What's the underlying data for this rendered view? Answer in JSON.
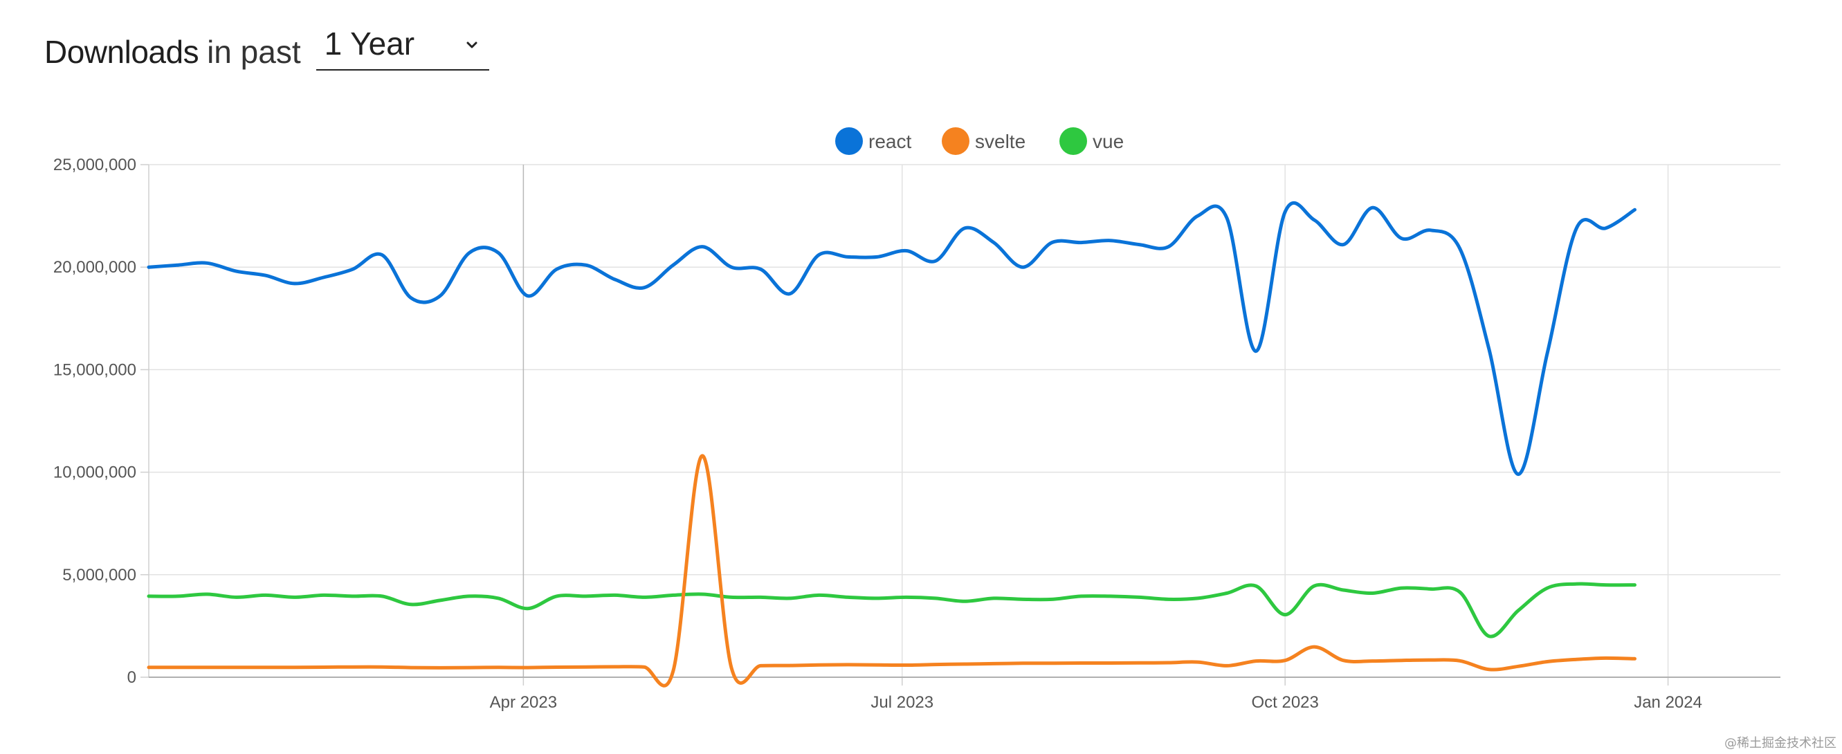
{
  "header": {
    "title_bold": "Downloads",
    "title_light": "in past",
    "range_select": {
      "value": "1 Year"
    }
  },
  "chart_data": {
    "type": "line",
    "title": "",
    "xlabel": "",
    "ylabel": "",
    "x_range": [
      "2023-01-01",
      "2024-01-28"
    ],
    "ylim": [
      0,
      25000000
    ],
    "y_ticks": [
      0,
      5000000,
      10000000,
      15000000,
      20000000,
      25000000
    ],
    "y_tick_labels": [
      "0",
      "5,000,000",
      "10,000,000",
      "15,000,000",
      "20,000,000",
      "25,000,000"
    ],
    "x_ticks": [
      "2023-04-01",
      "2023-07-01",
      "2023-10-01",
      "2024-01-01"
    ],
    "x_tick_labels": [
      "Apr 2023",
      "Jul 2023",
      "Oct 2023",
      "Jan 2024"
    ],
    "grid": true,
    "legend_position": "top-center",
    "series": [
      {
        "name": "react",
        "color": "#0a73d8",
        "points": [
          [
            "2023-01-01",
            20000000
          ],
          [
            "2023-01-08",
            20100000
          ],
          [
            "2023-01-15",
            20200000
          ],
          [
            "2023-01-22",
            19800000
          ],
          [
            "2023-01-29",
            19600000
          ],
          [
            "2023-02-05",
            19200000
          ],
          [
            "2023-02-12",
            19500000
          ],
          [
            "2023-02-19",
            19900000
          ],
          [
            "2023-02-26",
            20600000
          ],
          [
            "2023-03-05",
            18500000
          ],
          [
            "2023-03-12",
            18600000
          ],
          [
            "2023-03-19",
            20700000
          ],
          [
            "2023-03-26",
            20700000
          ],
          [
            "2023-04-02",
            18600000
          ],
          [
            "2023-04-09",
            19900000
          ],
          [
            "2023-04-16",
            20100000
          ],
          [
            "2023-04-23",
            19400000
          ],
          [
            "2023-04-30",
            19000000
          ],
          [
            "2023-05-07",
            20100000
          ],
          [
            "2023-05-14",
            21000000
          ],
          [
            "2023-05-21",
            20000000
          ],
          [
            "2023-05-28",
            19900000
          ],
          [
            "2023-06-04",
            18700000
          ],
          [
            "2023-06-11",
            20600000
          ],
          [
            "2023-06-18",
            20500000
          ],
          [
            "2023-06-25",
            20500000
          ],
          [
            "2023-07-02",
            20800000
          ],
          [
            "2023-07-09",
            20300000
          ],
          [
            "2023-07-16",
            21900000
          ],
          [
            "2023-07-23",
            21200000
          ],
          [
            "2023-07-30",
            20000000
          ],
          [
            "2023-08-06",
            21200000
          ],
          [
            "2023-08-13",
            21200000
          ],
          [
            "2023-08-20",
            21300000
          ],
          [
            "2023-08-27",
            21100000
          ],
          [
            "2023-09-03",
            21000000
          ],
          [
            "2023-09-10",
            22500000
          ],
          [
            "2023-09-17",
            22400000
          ],
          [
            "2023-09-24",
            15900000
          ],
          [
            "2023-10-01",
            22700000
          ],
          [
            "2023-10-08",
            22300000
          ],
          [
            "2023-10-15",
            21100000
          ],
          [
            "2023-10-22",
            22900000
          ],
          [
            "2023-10-29",
            21400000
          ],
          [
            "2023-11-05",
            21800000
          ],
          [
            "2023-11-12",
            20900000
          ],
          [
            "2023-11-19",
            16000000
          ],
          [
            "2023-11-26",
            9900000
          ],
          [
            "2023-12-03",
            15800000
          ],
          [
            "2023-12-10",
            21900000
          ],
          [
            "2023-12-17",
            21900000
          ],
          [
            "2023-12-24",
            22800000
          ]
        ]
      },
      {
        "name": "svelte",
        "color": "#f5821f",
        "points": [
          [
            "2023-01-01",
            480000
          ],
          [
            "2023-01-08",
            480000
          ],
          [
            "2023-01-15",
            480000
          ],
          [
            "2023-01-22",
            480000
          ],
          [
            "2023-01-29",
            480000
          ],
          [
            "2023-02-05",
            480000
          ],
          [
            "2023-02-12",
            490000
          ],
          [
            "2023-02-19",
            500000
          ],
          [
            "2023-02-26",
            500000
          ],
          [
            "2023-03-05",
            470000
          ],
          [
            "2023-03-12",
            460000
          ],
          [
            "2023-03-19",
            470000
          ],
          [
            "2023-03-26",
            480000
          ],
          [
            "2023-04-02",
            470000
          ],
          [
            "2023-04-09",
            490000
          ],
          [
            "2023-04-16",
            500000
          ],
          [
            "2023-04-23",
            510000
          ],
          [
            "2023-04-30",
            500000
          ],
          [
            "2023-05-07",
            310000
          ],
          [
            "2023-05-14",
            10800000
          ],
          [
            "2023-05-21",
            450000
          ],
          [
            "2023-05-28",
            560000
          ],
          [
            "2023-06-04",
            570000
          ],
          [
            "2023-06-11",
            600000
          ],
          [
            "2023-06-18",
            610000
          ],
          [
            "2023-06-25",
            600000
          ],
          [
            "2023-07-02",
            590000
          ],
          [
            "2023-07-09",
            620000
          ],
          [
            "2023-07-16",
            640000
          ],
          [
            "2023-07-23",
            660000
          ],
          [
            "2023-07-30",
            680000
          ],
          [
            "2023-08-06",
            680000
          ],
          [
            "2023-08-13",
            690000
          ],
          [
            "2023-08-20",
            690000
          ],
          [
            "2023-08-27",
            700000
          ],
          [
            "2023-09-03",
            710000
          ],
          [
            "2023-09-10",
            740000
          ],
          [
            "2023-09-17",
            560000
          ],
          [
            "2023-09-24",
            790000
          ],
          [
            "2023-10-01",
            820000
          ],
          [
            "2023-10-08",
            1480000
          ],
          [
            "2023-10-15",
            820000
          ],
          [
            "2023-10-22",
            790000
          ],
          [
            "2023-10-29",
            820000
          ],
          [
            "2023-11-05",
            840000
          ],
          [
            "2023-11-12",
            800000
          ],
          [
            "2023-11-19",
            380000
          ],
          [
            "2023-11-26",
            530000
          ],
          [
            "2023-12-03",
            760000
          ],
          [
            "2023-12-10",
            870000
          ],
          [
            "2023-12-17",
            930000
          ],
          [
            "2023-12-24",
            900000
          ]
        ]
      },
      {
        "name": "vue",
        "color": "#2ec840",
        "points": [
          [
            "2023-01-01",
            3950000
          ],
          [
            "2023-01-08",
            3950000
          ],
          [
            "2023-01-15",
            4050000
          ],
          [
            "2023-01-22",
            3900000
          ],
          [
            "2023-01-29",
            4000000
          ],
          [
            "2023-02-05",
            3900000
          ],
          [
            "2023-02-12",
            4000000
          ],
          [
            "2023-02-19",
            3950000
          ],
          [
            "2023-02-26",
            3950000
          ],
          [
            "2023-03-05",
            3550000
          ],
          [
            "2023-03-12",
            3750000
          ],
          [
            "2023-03-19",
            3950000
          ],
          [
            "2023-03-26",
            3850000
          ],
          [
            "2023-04-02",
            3350000
          ],
          [
            "2023-04-09",
            3950000
          ],
          [
            "2023-04-16",
            3950000
          ],
          [
            "2023-04-23",
            4000000
          ],
          [
            "2023-04-30",
            3900000
          ],
          [
            "2023-05-07",
            4000000
          ],
          [
            "2023-05-14",
            4050000
          ],
          [
            "2023-05-21",
            3900000
          ],
          [
            "2023-05-28",
            3900000
          ],
          [
            "2023-06-04",
            3850000
          ],
          [
            "2023-06-11",
            4000000
          ],
          [
            "2023-06-18",
            3900000
          ],
          [
            "2023-06-25",
            3850000
          ],
          [
            "2023-07-02",
            3900000
          ],
          [
            "2023-07-09",
            3850000
          ],
          [
            "2023-07-16",
            3700000
          ],
          [
            "2023-07-23",
            3850000
          ],
          [
            "2023-07-30",
            3800000
          ],
          [
            "2023-08-06",
            3800000
          ],
          [
            "2023-08-13",
            3950000
          ],
          [
            "2023-08-20",
            3950000
          ],
          [
            "2023-08-27",
            3900000
          ],
          [
            "2023-09-03",
            3800000
          ],
          [
            "2023-09-10",
            3850000
          ],
          [
            "2023-09-17",
            4100000
          ],
          [
            "2023-09-24",
            4450000
          ],
          [
            "2023-10-01",
            3050000
          ],
          [
            "2023-10-08",
            4450000
          ],
          [
            "2023-10-15",
            4250000
          ],
          [
            "2023-10-22",
            4100000
          ],
          [
            "2023-10-29",
            4350000
          ],
          [
            "2023-11-05",
            4300000
          ],
          [
            "2023-11-12",
            4150000
          ],
          [
            "2023-11-19",
            2000000
          ],
          [
            "2023-11-26",
            3250000
          ],
          [
            "2023-12-03",
            4350000
          ],
          [
            "2023-12-10",
            4550000
          ],
          [
            "2023-12-17",
            4500000
          ],
          [
            "2023-12-24",
            4500000
          ]
        ]
      }
    ]
  },
  "watermark": "@稀土掘金技术社区"
}
